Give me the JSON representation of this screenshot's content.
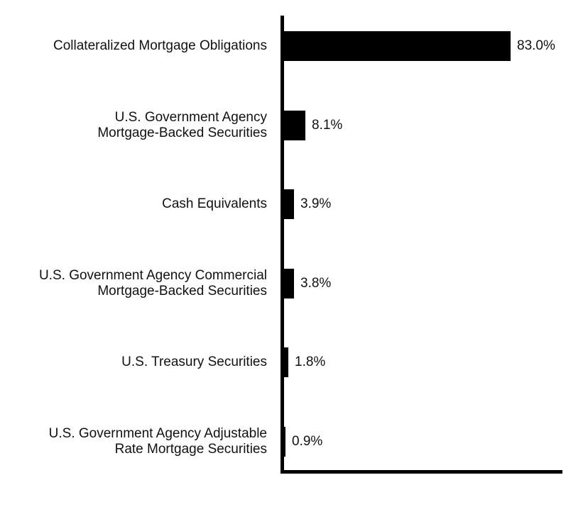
{
  "chart_data": {
    "type": "bar",
    "orientation": "horizontal",
    "title": "",
    "xlabel": "",
    "ylabel": "",
    "xlim": [
      0,
      100
    ],
    "grid": false,
    "legend": false,
    "bar_color": "#000000",
    "axis_color": "#000000",
    "text_color": "#111111",
    "categories": [
      "Collateralized Mortgage Obligations",
      "U.S. Government Agency Mortgage-Backed Securities",
      "Cash Equivalents",
      "U.S. Government Agency Commercial Mortgage-Backed Securities",
      "U.S. Treasury Securities",
      "U.S. Government Agency Adjustable Rate Mortgage Securities"
    ],
    "category_lines": [
      [
        "Collateralized Mortgage Obligations"
      ],
      [
        "U.S. Government Agency",
        "Mortgage-Backed Securities"
      ],
      [
        "Cash Equivalents"
      ],
      [
        "U.S. Government Agency Commercial",
        "Mortgage-Backed Securities"
      ],
      [
        "U.S. Treasury Securities"
      ],
      [
        "U.S. Government Agency Adjustable",
        "Rate Mortgage Securities"
      ]
    ],
    "values": [
      83.0,
      8.1,
      3.9,
      3.8,
      1.8,
      0.9
    ],
    "value_labels": [
      "83.0%",
      "8.1%",
      "3.9%",
      "3.8%",
      "1.8%",
      "0.9%"
    ]
  }
}
